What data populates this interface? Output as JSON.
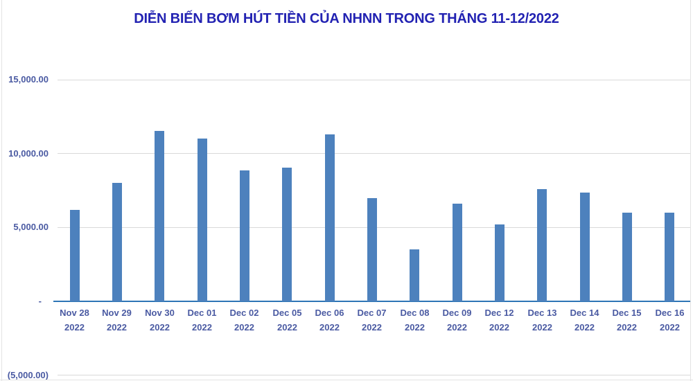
{
  "chart_data": {
    "type": "bar",
    "title": "DIỄN BIẾN BƠM HÚT TIỀN CỦA NHNN TRONG THÁNG 11-12/2022",
    "categories": [
      "Nov 28",
      "Nov 29",
      "Nov 30",
      "Dec 01",
      "Dec 02",
      "Dec 05",
      "Dec 06",
      "Dec 07",
      "Dec 08",
      "Dec 09",
      "Dec 12",
      "Dec 13",
      "Dec 14",
      "Dec 15",
      "Dec 16"
    ],
    "category_year": "2022",
    "values": [
      6200,
      8000,
      11550,
      11000,
      8850,
      9050,
      11300,
      7000,
      3500,
      6600,
      5200,
      7600,
      7350,
      6000,
      6000
    ],
    "y_ticks": [
      {
        "value": 15000,
        "label": "15,000.00"
      },
      {
        "value": 10000,
        "label": "10,000.00"
      },
      {
        "value": 5000,
        "label": "5,000.00"
      },
      {
        "value": 0,
        "label": "-"
      },
      {
        "value": -5000,
        "label": "(5,000.00)"
      }
    ],
    "ylim": [
      -5000,
      15000
    ],
    "grid": true,
    "legend": false,
    "xlabel": "",
    "ylabel": "",
    "colors": {
      "bar": "#4d81bd",
      "axis_line": "#2e75b6",
      "gridline": "#d9d9d9",
      "tick_label": "#4a5aa2",
      "title": "#2222b2",
      "sheet_edge": "#e3e3e3"
    }
  }
}
